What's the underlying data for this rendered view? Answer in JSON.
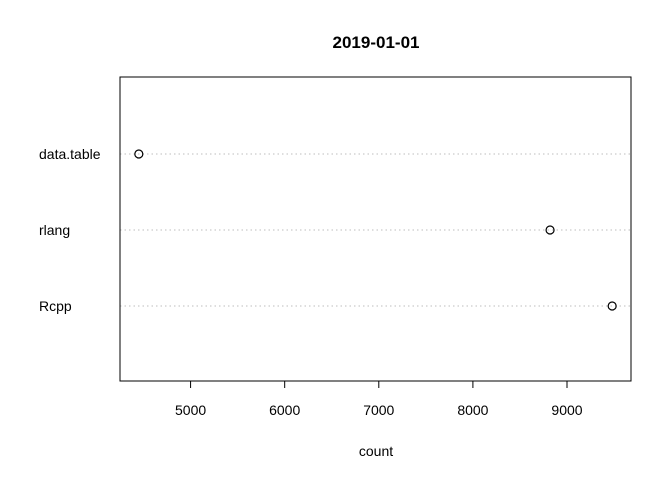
{
  "chart_data": {
    "type": "scatter",
    "title": "2019-01-01",
    "xlabel": "count",
    "ylabel": "",
    "categories": [
      "data.table",
      "rlang",
      "Rcpp"
    ],
    "values": [
      4450,
      8820,
      9480
    ],
    "xlim": [
      4250,
      9680
    ],
    "xticks": [
      5000,
      6000,
      7000,
      8000,
      9000
    ],
    "xtick_labels": [
      "5000",
      "6000",
      "7000",
      "8000",
      "9000"
    ],
    "grid": "dotted horizontal guide lines",
    "legend": "none",
    "marker": "open circle",
    "colors": {
      "marker": "#000000",
      "guide": "#bebebe",
      "frame": "#000000"
    }
  }
}
